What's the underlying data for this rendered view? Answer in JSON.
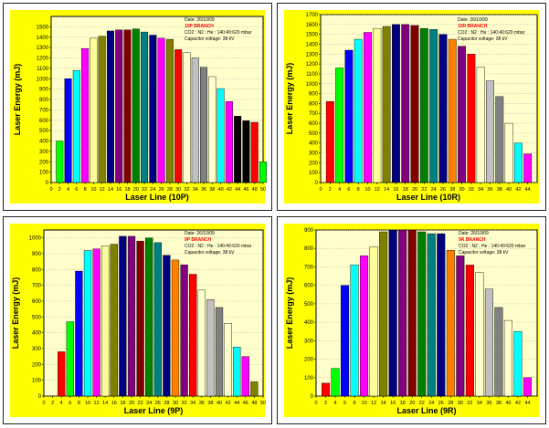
{
  "chart_data": [
    {
      "type": "bar",
      "xlabel": "Laser Line (10P)",
      "ylabel": "Laser Energy (mJ)",
      "xlim": [
        0,
        50
      ],
      "xticks": [
        0,
        2,
        4,
        6,
        8,
        10,
        12,
        14,
        16,
        18,
        20,
        22,
        24,
        26,
        28,
        30,
        32,
        34,
        36,
        38,
        40,
        42,
        44,
        46,
        48,
        50
      ],
      "ylim": [
        0,
        1600
      ],
      "yticks": [
        0,
        100,
        200,
        300,
        400,
        500,
        600,
        700,
        800,
        900,
        1000,
        1100,
        1200,
        1300,
        1400,
        1500
      ],
      "grid": true,
      "info": {
        "date": "Date: 26/10/09",
        "branch": "10P BRANCH",
        "gas": "CO2 : N2 : He : 140:40:620 mbar",
        "voltage": "Capacitor voltage: 38 kV"
      },
      "x": [
        2,
        4,
        6,
        8,
        10,
        12,
        14,
        16,
        18,
        20,
        22,
        24,
        26,
        28,
        30,
        32,
        34,
        36,
        38,
        40,
        42,
        44,
        46,
        48,
        50
      ],
      "values": [
        400,
        1000,
        1080,
        1290,
        1390,
        1410,
        1460,
        1470,
        1470,
        1480,
        1450,
        1420,
        1390,
        1380,
        1280,
        1250,
        1200,
        1110,
        1020,
        905,
        780,
        640,
        595,
        580,
        200
      ],
      "colors": [
        "#00ff00",
        "#0000ff",
        "#00ffff",
        "#ff00ff",
        "#ffff99",
        "#808000",
        "#000080",
        "#800080",
        "#800000",
        "#008000",
        "#008080",
        "#000080",
        "#ff00ff",
        "#808000",
        "#ff0000",
        "#ffffcc",
        "#c0c0c0",
        "#808080",
        "#ffffcc",
        "#00ffff",
        "#ff00ff",
        "#000000",
        "#000000",
        "#ff0000",
        "#00ff00"
      ]
    },
    {
      "type": "bar",
      "xlabel": "Laser Line (10R)",
      "ylabel": "Laser Energy (mJ)",
      "xlim": [
        0,
        46
      ],
      "xticks": [
        0,
        2,
        4,
        6,
        8,
        10,
        12,
        14,
        16,
        18,
        20,
        22,
        24,
        26,
        28,
        30,
        32,
        34,
        36,
        38,
        40,
        42,
        44
      ],
      "ylim": [
        0,
        1700
      ],
      "yticks": [
        0,
        100,
        200,
        300,
        400,
        500,
        600,
        700,
        800,
        900,
        1000,
        1100,
        1200,
        1300,
        1400,
        1500,
        1600,
        1700
      ],
      "grid": true,
      "info": {
        "date": "Date: 26/10/09",
        "branch": "10R BRANCH",
        "gas": "CO2 : N2 : He : 140:40:620 mbar",
        "voltage": "Capacitor voltage: 38 kV"
      },
      "x": [
        2,
        4,
        6,
        8,
        10,
        12,
        14,
        16,
        18,
        20,
        22,
        24,
        26,
        28,
        30,
        32,
        34,
        36,
        38,
        40,
        42,
        44
      ],
      "values": [
        820,
        1160,
        1340,
        1450,
        1520,
        1560,
        1580,
        1600,
        1600,
        1590,
        1560,
        1550,
        1500,
        1450,
        1380,
        1300,
        1170,
        1030,
        870,
        600,
        400,
        290
      ],
      "colors": [
        "#ff0000",
        "#00ff00",
        "#0000ff",
        "#00ffff",
        "#ff00ff",
        "#ffff99",
        "#808000",
        "#000080",
        "#800080",
        "#800000",
        "#008000",
        "#008080",
        "#000080",
        "#ff8000",
        "#800080",
        "#ff0000",
        "#ffffcc",
        "#c0c0c0",
        "#808080",
        "#ffffcc",
        "#00ffff",
        "#ff00ff"
      ]
    },
    {
      "type": "bar",
      "xlabel": "Laser Line (9P)",
      "ylabel": "Laser Energy (mJ)",
      "xlim": [
        0,
        50
      ],
      "xticks": [
        0,
        2,
        4,
        6,
        8,
        10,
        12,
        14,
        16,
        18,
        20,
        22,
        24,
        26,
        28,
        30,
        32,
        34,
        36,
        38,
        40,
        42,
        44,
        46,
        48,
        50
      ],
      "ylim": [
        0,
        1050
      ],
      "yticks": [
        0,
        100,
        200,
        300,
        400,
        500,
        600,
        700,
        800,
        900,
        1000
      ],
      "grid": true,
      "info": {
        "date": "Date: 26/10/09",
        "branch": "9P BRANCH",
        "gas": "CO2 : N2 : He : 140:40:620 mbar",
        "voltage": "Capacitor voltage: 38 kV"
      },
      "x": [
        4,
        6,
        8,
        10,
        12,
        14,
        16,
        18,
        20,
        22,
        24,
        26,
        28,
        30,
        32,
        34,
        36,
        38,
        40,
        42,
        44,
        46,
        48
      ],
      "values": [
        280,
        470,
        790,
        920,
        930,
        950,
        960,
        1010,
        1010,
        980,
        1000,
        970,
        890,
        860,
        830,
        770,
        670,
        610,
        560,
        460,
        310,
        250,
        90
      ],
      "colors": [
        "#ff0000",
        "#00ff00",
        "#0000ff",
        "#00ffff",
        "#ff00ff",
        "#ffff99",
        "#808000",
        "#000080",
        "#800080",
        "#800000",
        "#008000",
        "#008080",
        "#000080",
        "#ff8000",
        "#800080",
        "#ff0000",
        "#ffffcc",
        "#c0c0c0",
        "#808080",
        "#ffffcc",
        "#00ffff",
        "#ff00ff",
        "#808000"
      ]
    },
    {
      "type": "bar",
      "xlabel": "Laser Line (9R)",
      "ylabel": "Laser Energy (mJ)",
      "xlim": [
        0,
        46
      ],
      "xticks": [
        0,
        2,
        4,
        6,
        8,
        10,
        12,
        14,
        16,
        18,
        20,
        22,
        24,
        26,
        28,
        30,
        32,
        34,
        36,
        38,
        40,
        42,
        44
      ],
      "ylim": [
        0,
        900
      ],
      "yticks": [
        0,
        100,
        200,
        300,
        400,
        500,
        600,
        700,
        800,
        900
      ],
      "grid": true,
      "info": {
        "date": "Date: 26/10/09",
        "branch": "9R BRANCH",
        "gas": "CO2 : N2 : He : 140:40:620 mbar",
        "voltage": "Capacitor voltage: 38 kV"
      },
      "x": [
        2,
        4,
        6,
        8,
        10,
        12,
        14,
        16,
        18,
        20,
        22,
        24,
        26,
        28,
        30,
        32,
        34,
        36,
        38,
        40,
        42,
        44
      ],
      "values": [
        70,
        150,
        600,
        710,
        760,
        810,
        890,
        900,
        900,
        900,
        890,
        880,
        880,
        790,
        760,
        710,
        670,
        580,
        480,
        410,
        350,
        100
      ],
      "colors": [
        "#ff0000",
        "#00ff00",
        "#0000ff",
        "#00ffff",
        "#ff00ff",
        "#ffff99",
        "#808000",
        "#000080",
        "#800080",
        "#800000",
        "#008000",
        "#008080",
        "#000080",
        "#ff8000",
        "#800080",
        "#ff0000",
        "#ffffcc",
        "#c0c0c0",
        "#808080",
        "#ffffcc",
        "#00ffff",
        "#ff00ff"
      ]
    }
  ]
}
